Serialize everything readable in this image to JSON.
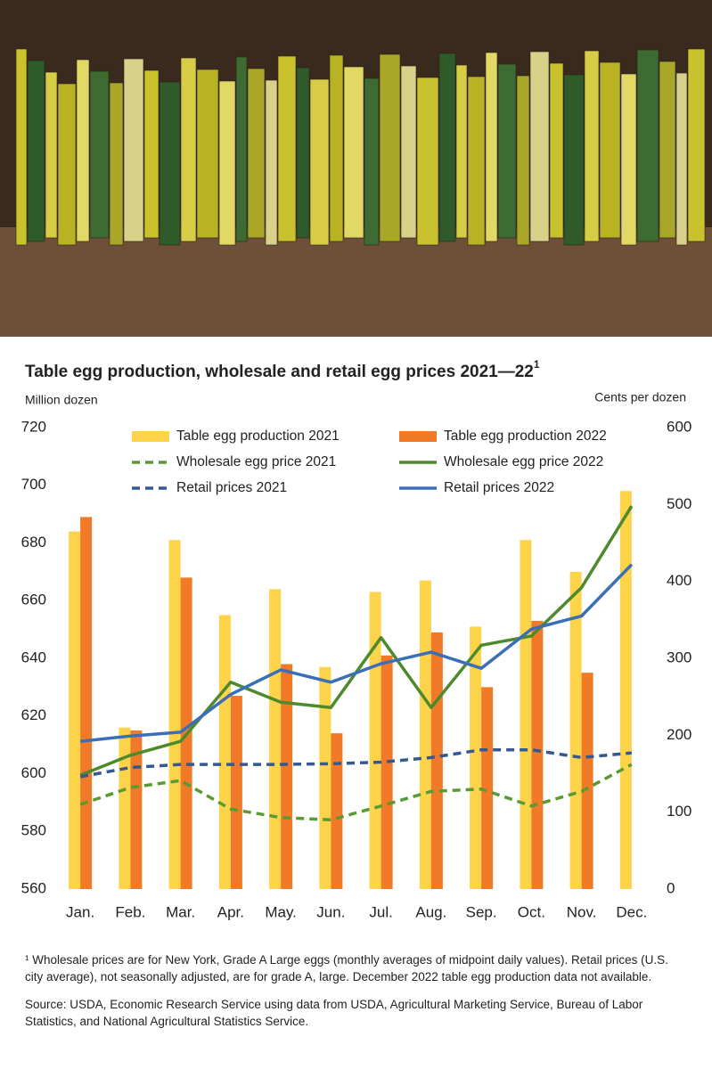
{
  "chart_data": {
    "type": "combo",
    "title": "Table egg production, wholesale and retail egg prices 2021—22",
    "title_note": "1",
    "y_label": "Million dozen",
    "y2_label": "Cents per dozen",
    "categories": [
      "Jan.",
      "Feb.",
      "Mar.",
      "Apr.",
      "May.",
      "Jun.",
      "Jul.",
      "Aug.",
      "Sep.",
      "Oct.",
      "Nov.",
      "Dec."
    ],
    "series": [
      {
        "name": "Table egg production 2021",
        "type": "bar",
        "color": "#fdd34a",
        "values": [
          684,
          616,
          681,
          655,
          664,
          637,
          663,
          667,
          651,
          681,
          670,
          698
        ]
      },
      {
        "name": "Table egg production 2022",
        "type": "bar",
        "color": "#f07a28",
        "values": [
          689,
          615,
          668,
          627,
          638,
          614,
          641,
          649,
          630,
          653,
          635,
          null
        ]
      },
      {
        "name": "Wholesale egg price 2021",
        "type": "line",
        "axis": "y2",
        "dash": true,
        "color": "#5a9a32",
        "values": [
          110,
          132,
          141,
          104,
          93,
          90,
          108,
          127,
          130,
          108,
          127,
          162
        ]
      },
      {
        "name": "Wholesale egg price 2022",
        "type": "line",
        "axis": "y2",
        "dash": false,
        "color": "#4d8a2c",
        "values": [
          148,
          174,
          192,
          269,
          243,
          236,
          327,
          236,
          317,
          329,
          392,
          498
        ]
      },
      {
        "name": "Retail prices 2021",
        "type": "line",
        "axis": "y2",
        "dash": true,
        "color": "#35588f",
        "values": [
          146,
          158,
          162,
          162,
          162,
          163,
          165,
          171,
          181,
          181,
          171,
          177
        ]
      },
      {
        "name": "Retail prices 2022",
        "type": "line",
        "axis": "y2",
        "dash": false,
        "color": "#3a6fb8",
        "values": [
          192,
          199,
          204,
          253,
          285,
          269,
          293,
          308,
          287,
          338,
          355,
          422
        ]
      }
    ],
    "ylim": [
      560,
      720
    ],
    "yticks": [
      560,
      580,
      600,
      620,
      640,
      660,
      680,
      700,
      720
    ],
    "y2lim": [
      0,
      600
    ],
    "y2ticks": [
      0,
      100,
      200,
      300,
      400,
      500,
      600
    ],
    "grid": false,
    "footnote": "¹ Wholesale prices are for New York, Grade A Large eggs (monthly averages of midpoint daily values). Retail prices (U.S. city average), not seasonally adjusted, are for grade A, large. December 2022 table egg production data not available.",
    "source": "Source:  USDA, Economic Research Service using data from USDA, Agricultural Marketing Service, Bureau of Labor Statistics, and National Agricultural Statistics Service."
  }
}
